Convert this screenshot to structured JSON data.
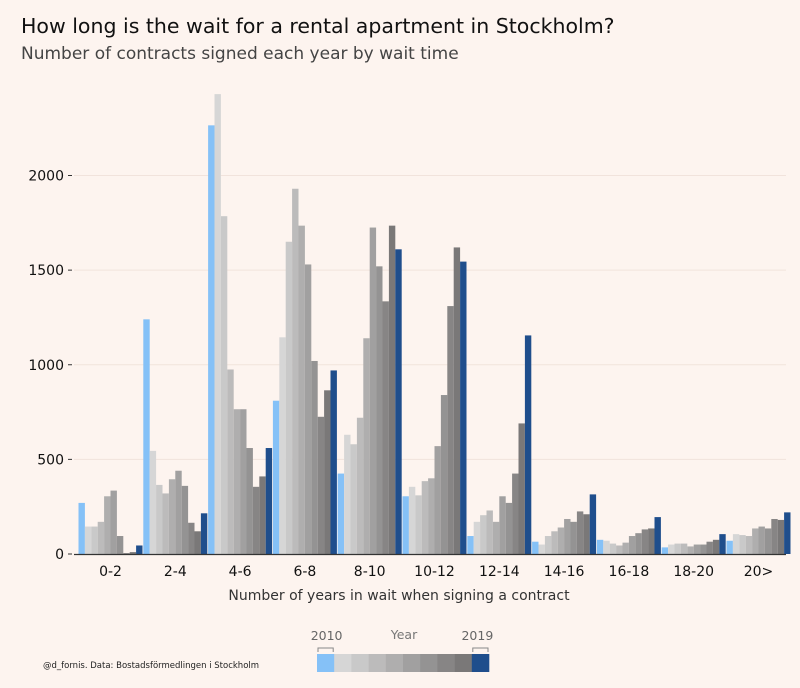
{
  "title": "How long is the wait for a rental apartment in Stockholm?",
  "subtitle": "Number of contracts signed each year by wait time",
  "credit": "@d_fornis. Data: Bostadsförmedlingen i Stockholm",
  "legend": {
    "title": "Year",
    "start_label": "2010",
    "end_label": "2019"
  },
  "colors": {
    "first_year": "#85c1f7",
    "last_year": "#1f4e8c",
    "gray_start": "#d6d6d6",
    "gray_end": "#7a7878",
    "axis": "#333333",
    "grid": "#f1e3dc"
  },
  "chart_data": {
    "type": "bar",
    "title": "How long is the wait for a rental apartment in Stockholm?",
    "subtitle": "Number of contracts signed each year by wait time",
    "xlabel": "Number of years in wait when signing a contract",
    "ylabel": "",
    "ylim": [
      0,
      2450
    ],
    "yticks": [
      0,
      500,
      1000,
      1500,
      2000
    ],
    "grid": true,
    "legend_position": "bottom-center",
    "categories": [
      "0-2",
      "2-4",
      "4-6",
      "6-8",
      "8-10",
      "10-12",
      "12-14",
      "14-16",
      "16-18",
      "18-20",
      "20>"
    ],
    "series": [
      {
        "name": "2010",
        "values": [
          270,
          1240,
          2265,
          810,
          425,
          305,
          95,
          65,
          75,
          35,
          70
        ]
      },
      {
        "name": "2011",
        "values": [
          145,
          545,
          2430,
          1145,
          630,
          355,
          170,
          50,
          70,
          50,
          105
        ]
      },
      {
        "name": "2012",
        "values": [
          145,
          365,
          1785,
          1650,
          580,
          310,
          205,
          95,
          55,
          55,
          100
        ]
      },
      {
        "name": "2013",
        "values": [
          170,
          320,
          975,
          1930,
          720,
          385,
          230,
          120,
          45,
          55,
          95
        ]
      },
      {
        "name": "2014",
        "values": [
          305,
          395,
          765,
          1735,
          1140,
          400,
          170,
          140,
          60,
          40,
          135
        ]
      },
      {
        "name": "2015",
        "values": [
          335,
          440,
          765,
          1530,
          1725,
          570,
          305,
          185,
          95,
          50,
          145
        ]
      },
      {
        "name": "2016",
        "values": [
          95,
          360,
          560,
          1020,
          1520,
          840,
          270,
          170,
          110,
          50,
          135
        ]
      },
      {
        "name": "2017",
        "values": [
          5,
          165,
          355,
          725,
          1335,
          1310,
          425,
          225,
          130,
          65,
          185
        ]
      },
      {
        "name": "2018",
        "values": [
          10,
          120,
          410,
          865,
          1735,
          1620,
          690,
          210,
          135,
          75,
          180
        ]
      },
      {
        "name": "2019",
        "values": [
          45,
          215,
          560,
          970,
          1610,
          1545,
          1155,
          315,
          195,
          105,
          220
        ]
      }
    ]
  }
}
